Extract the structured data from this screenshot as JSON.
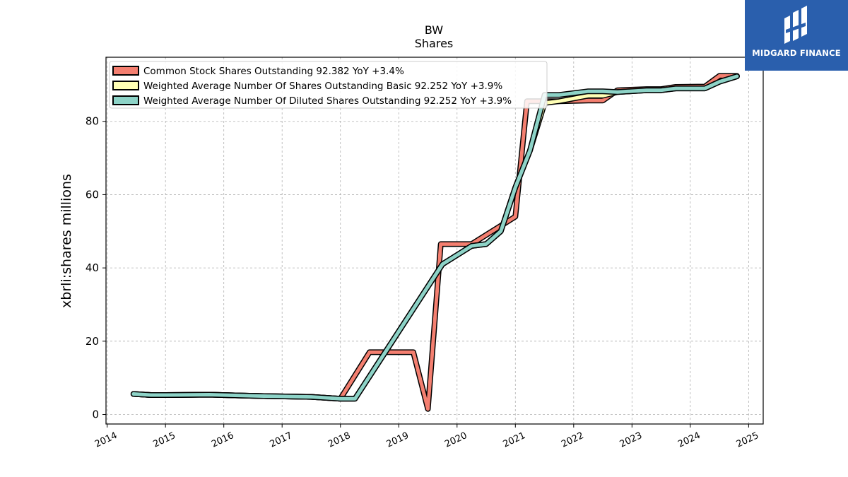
{
  "header": {
    "title": "BW",
    "subtitle": "Shares"
  },
  "logo": {
    "text": "MIDGARD FINANCE",
    "background": "#2a5fad"
  },
  "chart_data": {
    "type": "line",
    "title": "BW",
    "subtitle": "Shares",
    "xlabel": "",
    "ylabel": "xbrli:shares millions",
    "xlim": [
      2013.98,
      2025.25
    ],
    "ylim": [
      -2.6,
      97.5
    ],
    "x_ticks": [
      2014,
      2015,
      2016,
      2017,
      2018,
      2019,
      2020,
      2021,
      2022,
      2023,
      2024,
      2025
    ],
    "y_ticks": [
      0,
      20,
      40,
      60,
      80
    ],
    "grid": true,
    "legend_position": "top-left",
    "series": [
      {
        "name": "Common Stock Shares Outstanding  92.382 YoY +3.4%",
        "color": "#f47f70",
        "points": [
          [
            2014.45,
            5.6
          ],
          [
            2014.75,
            5.3
          ],
          [
            2015.0,
            5.3
          ],
          [
            2015.75,
            5.4
          ],
          [
            2016.25,
            5.2
          ],
          [
            2016.75,
            5.0
          ],
          [
            2017.5,
            4.8
          ],
          [
            2018.0,
            4.3
          ],
          [
            2018.5,
            17.0
          ],
          [
            2019.25,
            17.0
          ],
          [
            2019.5,
            1.5
          ],
          [
            2019.72,
            46.5
          ],
          [
            2020.25,
            46.5
          ],
          [
            2020.75,
            51.5
          ],
          [
            2021.0,
            54.0
          ],
          [
            2021.2,
            85.5
          ],
          [
            2021.5,
            85.5
          ],
          [
            2021.75,
            85.5
          ],
          [
            2022.25,
            85.7
          ],
          [
            2022.5,
            85.7
          ],
          [
            2022.75,
            88.5
          ],
          [
            2023.25,
            88.8
          ],
          [
            2023.5,
            88.8
          ],
          [
            2023.75,
            89.4
          ],
          [
            2024.25,
            89.5
          ],
          [
            2024.5,
            92.4
          ],
          [
            2024.8,
            92.4
          ]
        ]
      },
      {
        "name": "Weighted Average Number Of Shares Outstanding Basic  92.252 YoY +3.9%",
        "color": "#ffffb5",
        "points": [
          [
            2014.45,
            5.6
          ],
          [
            2014.75,
            5.3
          ],
          [
            2015.0,
            5.3
          ],
          [
            2015.75,
            5.4
          ],
          [
            2016.25,
            5.2
          ],
          [
            2016.75,
            5.0
          ],
          [
            2017.5,
            4.8
          ],
          [
            2018.0,
            4.3
          ],
          [
            2018.25,
            4.3
          ],
          [
            2019.75,
            41.0
          ],
          [
            2020.25,
            46.0
          ],
          [
            2020.5,
            46.5
          ],
          [
            2020.75,
            50.0
          ],
          [
            2021.0,
            62.0
          ],
          [
            2021.25,
            72.0
          ],
          [
            2021.5,
            85.0
          ],
          [
            2021.75,
            85.5
          ],
          [
            2022.25,
            87.0
          ],
          [
            2022.5,
            87.0
          ],
          [
            2022.75,
            88.0
          ],
          [
            2023.25,
            88.5
          ],
          [
            2023.5,
            88.5
          ],
          [
            2023.75,
            89.0
          ],
          [
            2024.25,
            89.0
          ],
          [
            2024.5,
            90.8
          ],
          [
            2024.8,
            92.3
          ]
        ]
      },
      {
        "name": "Weighted Average Number Of Diluted Shares Outstanding  92.252 YoY +3.9%",
        "color": "#8dd3c7",
        "points": [
          [
            2014.45,
            5.6
          ],
          [
            2014.75,
            5.3
          ],
          [
            2015.0,
            5.3
          ],
          [
            2015.75,
            5.4
          ],
          [
            2016.25,
            5.2
          ],
          [
            2016.75,
            5.0
          ],
          [
            2017.5,
            4.8
          ],
          [
            2018.0,
            4.3
          ],
          [
            2018.25,
            4.3
          ],
          [
            2019.75,
            41.0
          ],
          [
            2020.25,
            46.0
          ],
          [
            2020.5,
            46.5
          ],
          [
            2020.75,
            50.0
          ],
          [
            2021.0,
            62.0
          ],
          [
            2021.25,
            72.0
          ],
          [
            2021.5,
            87.2
          ],
          [
            2021.75,
            87.2
          ],
          [
            2022.25,
            88.2
          ],
          [
            2022.5,
            88.2
          ],
          [
            2022.75,
            88.0
          ],
          [
            2023.25,
            88.5
          ],
          [
            2023.5,
            88.5
          ],
          [
            2023.75,
            89.0
          ],
          [
            2024.25,
            89.0
          ],
          [
            2024.5,
            90.8
          ],
          [
            2024.8,
            92.3
          ]
        ]
      }
    ]
  }
}
